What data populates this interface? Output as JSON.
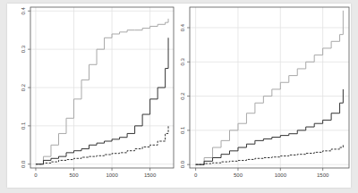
{
  "chart_data": [
    {
      "type": "step",
      "x": [
        0,
        100,
        200,
        300,
        400,
        500,
        600,
        700,
        800,
        900,
        1000,
        1100,
        1200,
        1300,
        1400,
        1500,
        1600,
        1700,
        1740
      ],
      "series": [
        {
          "color": "#a8a8a8",
          "line_style": "solid",
          "values": [
            0,
            0.02,
            0.05,
            0.08,
            0.12,
            0.17,
            0.22,
            0.26,
            0.3,
            0.33,
            0.34,
            0.345,
            0.35,
            0.35,
            0.355,
            0.36,
            0.365,
            0.37,
            0.38
          ]
        },
        {
          "color": "#333333",
          "line_style": "solid",
          "values": [
            0,
            0.01,
            0.015,
            0.02,
            0.03,
            0.035,
            0.04,
            0.05,
            0.055,
            0.06,
            0.065,
            0.07,
            0.08,
            0.1,
            0.13,
            0.17,
            0.2,
            0.25,
            0.33
          ]
        },
        {
          "color": "#333333",
          "line_style": "dashed",
          "values": [
            0,
            0.003,
            0.006,
            0.01,
            0.012,
            0.015,
            0.018,
            0.02,
            0.022,
            0.025,
            0.028,
            0.03,
            0.035,
            0.04,
            0.045,
            0.05,
            0.06,
            0.08,
            0.1
          ]
        }
      ],
      "xlim": [
        -70,
        1810
      ],
      "ylim": [
        -0.01,
        0.41
      ],
      "xticks": [
        0,
        500,
        1000,
        1500
      ],
      "yticks": [
        {
          "value": 0,
          "label": "0.0"
        },
        0.1,
        0.2,
        0.3,
        0.4
      ],
      "grid": true
    },
    {
      "type": "step",
      "x": [
        0,
        100,
        200,
        300,
        400,
        500,
        600,
        700,
        800,
        900,
        1000,
        1100,
        1200,
        1300,
        1400,
        1500,
        1600,
        1700,
        1740
      ],
      "series": [
        {
          "color": "#a8a8a8",
          "line_style": "solid",
          "values": [
            0,
            0.02,
            0.05,
            0.07,
            0.1,
            0.12,
            0.15,
            0.18,
            0.2,
            0.22,
            0.24,
            0.26,
            0.28,
            0.3,
            0.32,
            0.34,
            0.36,
            0.38,
            0.45
          ]
        },
        {
          "color": "#333333",
          "line_style": "solid",
          "values": [
            0,
            0.01,
            0.02,
            0.03,
            0.04,
            0.05,
            0.06,
            0.07,
            0.075,
            0.08,
            0.085,
            0.09,
            0.1,
            0.11,
            0.12,
            0.13,
            0.15,
            0.18,
            0.22
          ]
        },
        {
          "color": "#333333",
          "line_style": "dashed",
          "values": [
            0,
            0.003,
            0.005,
            0.008,
            0.01,
            0.012,
            0.015,
            0.018,
            0.02,
            0.022,
            0.025,
            0.028,
            0.03,
            0.033,
            0.036,
            0.04,
            0.045,
            0.05,
            0.06
          ]
        }
      ],
      "xlim": [
        -70,
        1810
      ],
      "ylim": [
        -0.01,
        0.46
      ],
      "xticks": [
        0,
        500,
        1000,
        1500
      ],
      "yticks": [
        {
          "value": 0,
          "label": "0.0"
        },
        0.1,
        0.2,
        0.3,
        0.4
      ],
      "grid": true
    }
  ]
}
